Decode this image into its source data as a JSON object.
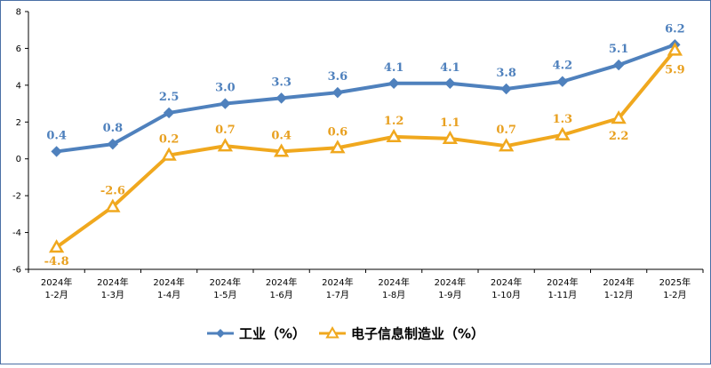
{
  "chart_data": {
    "type": "line",
    "categories": [
      [
        "2024年",
        "1-2月"
      ],
      [
        "2024年",
        "1-3月"
      ],
      [
        "2024年",
        "1-4月"
      ],
      [
        "2024年",
        "1-5月"
      ],
      [
        "2024年",
        "1-6月"
      ],
      [
        "2024年",
        "1-7月"
      ],
      [
        "2024年",
        "1-8月"
      ],
      [
        "2024年",
        "1-9月"
      ],
      [
        "2024年",
        "1-10月"
      ],
      [
        "2024年",
        "1-11月"
      ],
      [
        "2024年",
        "1-12月"
      ],
      [
        "2025年",
        "1-2月"
      ]
    ],
    "series": [
      {
        "name": "工业（%）",
        "marker": "diamond",
        "color": "#4f81bd",
        "label_color": "#4f81bd",
        "values": [
          0.4,
          0.8,
          2.5,
          3.0,
          3.3,
          3.6,
          4.1,
          4.1,
          3.8,
          4.2,
          5.1,
          6.2
        ],
        "labels": [
          "0.4",
          "0.8",
          "2.5",
          "3.0",
          "3.3",
          "3.6",
          "4.1",
          "4.1",
          "3.8",
          "4.2",
          "5.1",
          "6.2"
        ]
      },
      {
        "name": "电子信息制造业（%）",
        "marker": "triangle",
        "color": "#f0a81e",
        "label_color": "#e8a020",
        "values": [
          -4.8,
          -2.6,
          0.2,
          0.7,
          0.4,
          0.6,
          1.2,
          1.1,
          0.7,
          1.3,
          2.2,
          5.9
        ],
        "labels": [
          "-4.8",
          "-2.6",
          "0.2",
          "0.7",
          "0.4",
          "0.6",
          "1.2",
          "1.1",
          "0.7",
          "1.3",
          "2.2",
          "5.9"
        ]
      }
    ],
    "ylim": [
      -6,
      8
    ],
    "yticks": [
      -6,
      -4,
      -2,
      0,
      2,
      4,
      6,
      8
    ],
    "ytick_labels": [
      "-6",
      "-4",
      "-2",
      "0",
      "2",
      "4",
      "6",
      "8"
    ],
    "grid": false,
    "legend": "bottom",
    "title": "",
    "xlabel": "",
    "ylabel": ""
  }
}
